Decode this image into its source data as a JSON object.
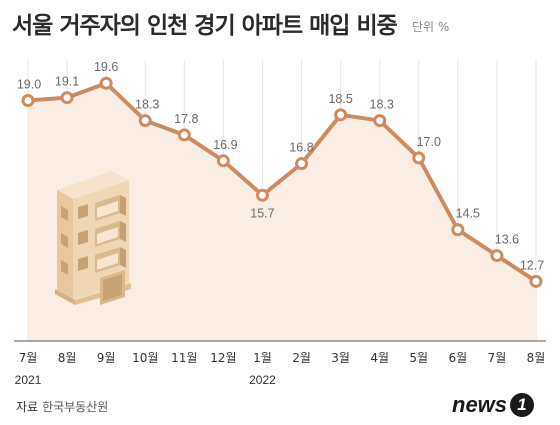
{
  "title": "서울 거주자의 인천 경기 아파트 매입 비중",
  "unit": "단위 %",
  "source_label": "자료",
  "source_name": "한국부동산원",
  "logo_text": "news",
  "logo_badge": "1",
  "colors": {
    "line": "#cf8b5f",
    "area": "#faeee4",
    "grid": "#e6e6e6",
    "axis": "#555555"
  },
  "chart_data": {
    "type": "line",
    "title": "서울 거주자의 인천 경기 아파트 매입 비중",
    "unit": "%",
    "categories": [
      "7월",
      "8월",
      "9월",
      "10월",
      "11월",
      "12월",
      "1월",
      "2월",
      "3월",
      "4월",
      "5월",
      "6월",
      "7월",
      "8월"
    ],
    "year_labels": [
      {
        "index": 0,
        "label": "2021"
      },
      {
        "index": 6,
        "label": "2022"
      }
    ],
    "series": [
      {
        "values": [
          19.0,
          19.1,
          19.6,
          18.3,
          17.8,
          16.9,
          15.7,
          16.8,
          18.5,
          18.3,
          17.0,
          14.5,
          13.6,
          12.7
        ]
      }
    ],
    "value_labels": [
      "19.0",
      "19.1",
      "19.6",
      "18.3",
      "17.8",
      "16.9",
      "15.7",
      "16.8",
      "18.5",
      "18.3",
      "17.0",
      "14.5",
      "13.6",
      "12.7"
    ],
    "ylim": [
      10.8,
      20.2
    ],
    "grid": false,
    "legend": "none",
    "fill": "area"
  }
}
